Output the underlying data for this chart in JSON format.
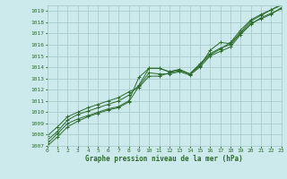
{
  "title": "Graphe pression niveau de la mer (hPa)",
  "bg_color": "#cceaec",
  "grid_color": "#aacccc",
  "line_color": "#2d6a2d",
  "xlim": [
    0,
    23
  ],
  "ylim": [
    1007,
    1019.5
  ],
  "xticks": [
    0,
    1,
    2,
    3,
    4,
    5,
    6,
    7,
    8,
    9,
    10,
    11,
    12,
    13,
    14,
    15,
    16,
    17,
    18,
    19,
    20,
    21,
    22,
    23
  ],
  "yticks": [
    1007,
    1008,
    1009,
    1010,
    1011,
    1012,
    1013,
    1014,
    1015,
    1016,
    1017,
    1018,
    1019
  ],
  "series": [
    [
      1007.2,
      1008.1,
      1009.0,
      1009.4,
      1009.7,
      1010.0,
      1010.3,
      1010.5,
      1011.0,
      1013.1,
      1013.9,
      1013.9,
      1013.6,
      1013.8,
      1013.4,
      1014.1,
      1015.5,
      1016.2,
      1016.1,
      1017.1,
      1018.1,
      1018.6,
      1019.1,
      1019.6
    ],
    [
      1007.5,
      1008.3,
      1009.3,
      1009.8,
      1010.1,
      1010.4,
      1010.7,
      1011.0,
      1011.5,
      1012.4,
      1013.9,
      1013.9,
      1013.6,
      1013.8,
      1013.4,
      1014.2,
      1015.1,
      1015.6,
      1016.2,
      1017.3,
      1018.2,
      1018.7,
      1019.1,
      1019.5
    ],
    [
      1007.9,
      1008.7,
      1009.6,
      1010.0,
      1010.4,
      1010.7,
      1011.0,
      1011.3,
      1011.8,
      1012.2,
      1013.2,
      1013.2,
      1013.5,
      1013.7,
      1013.4,
      1014.3,
      1015.2,
      1015.7,
      1016.0,
      1017.0,
      1017.9,
      1018.3,
      1018.7,
      1019.3
    ],
    [
      1007.0,
      1007.8,
      1008.7,
      1009.2,
      1009.6,
      1009.9,
      1010.2,
      1010.4,
      1010.9,
      1012.3,
      1013.5,
      1013.4,
      1013.4,
      1013.6,
      1013.3,
      1014.0,
      1015.0,
      1015.4,
      1015.8,
      1016.9,
      1017.8,
      1018.4,
      1018.8,
      1019.2
    ]
  ]
}
